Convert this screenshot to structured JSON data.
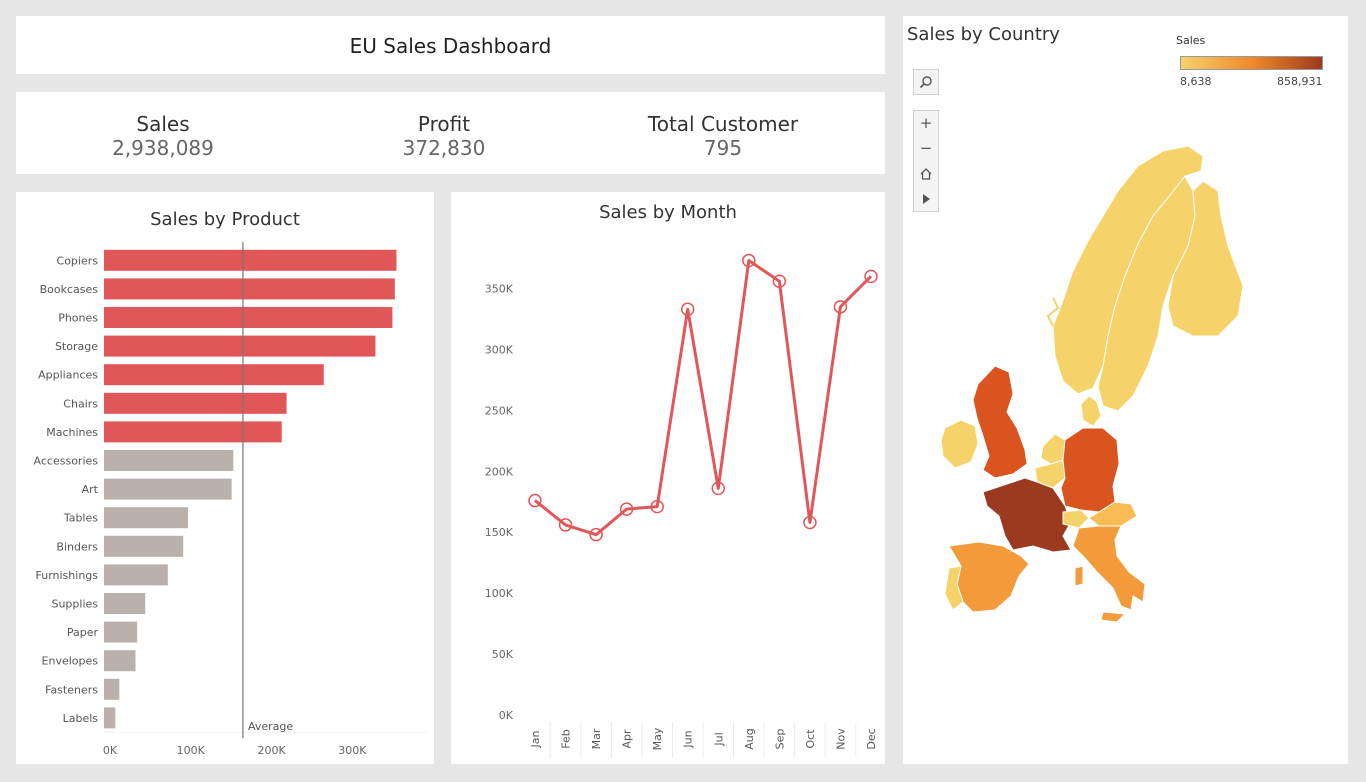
{
  "dashboard": {
    "title": "EU Sales Dashboard",
    "kpis": [
      {
        "label": "Sales",
        "value": "2,938,089"
      },
      {
        "label": "Profit",
        "value": "372,830"
      },
      {
        "label": "Total Customer",
        "value": "795"
      }
    ]
  },
  "product_chart": {
    "title": "Sales by Product",
    "average_label": "Average"
  },
  "month_chart": {
    "title": "Sales by Month"
  },
  "map": {
    "title": "Sales by Country",
    "legend_title": "Sales",
    "legend_min": "8,638",
    "legend_max": "858,931",
    "tools": [
      "search-icon",
      "zoom-in-icon",
      "zoom-out-icon",
      "home-icon",
      "play-icon"
    ]
  },
  "colors": {
    "above_average": "#e15759",
    "below_average": "#bab0ac",
    "line": "#e15759",
    "map_low": "#f6d26b",
    "map_mid": "#f08a2b",
    "map_high": "#9b3a1e"
  },
  "chart_data": [
    {
      "type": "bar",
      "orientation": "horizontal",
      "title": "Sales by Product",
      "categories": [
        "Copiers",
        "Bookcases",
        "Phones",
        "Storage",
        "Appliances",
        "Chairs",
        "Machines",
        "Accessories",
        "Art",
        "Tables",
        "Binders",
        "Furnishings",
        "Supplies",
        "Paper",
        "Envelopes",
        "Fasteners",
        "Labels"
      ],
      "values": [
        362000,
        360000,
        357000,
        336000,
        272000,
        226000,
        220000,
        160000,
        158000,
        104000,
        98000,
        79000,
        51000,
        41000,
        39000,
        19000,
        14000
      ],
      "reference_line": {
        "label": "Average",
        "value": 172000
      },
      "xlim": [
        0,
        380000
      ],
      "xticks": [
        "0K",
        "100K",
        "200K",
        "300K"
      ],
      "xtick_values": [
        0,
        100000,
        200000,
        300000
      ],
      "grid": false
    },
    {
      "type": "line",
      "title": "Sales by Month",
      "x": [
        "Jan",
        "Feb",
        "Mar",
        "Apr",
        "May",
        "Jun",
        "Jul",
        "Aug",
        "Sep",
        "Oct",
        "Nov",
        "Dec"
      ],
      "values": [
        176000,
        156000,
        148000,
        169000,
        171000,
        333000,
        186000,
        373000,
        356000,
        158000,
        335000,
        360000
      ],
      "ylim": [
        0,
        380000
      ],
      "yticks": [
        "0K",
        "50K",
        "100K",
        "150K",
        "200K",
        "250K",
        "300K",
        "350K"
      ],
      "ytick_values": [
        0,
        50000,
        100000,
        150000,
        200000,
        250000,
        300000,
        350000
      ],
      "grid": false
    }
  ]
}
